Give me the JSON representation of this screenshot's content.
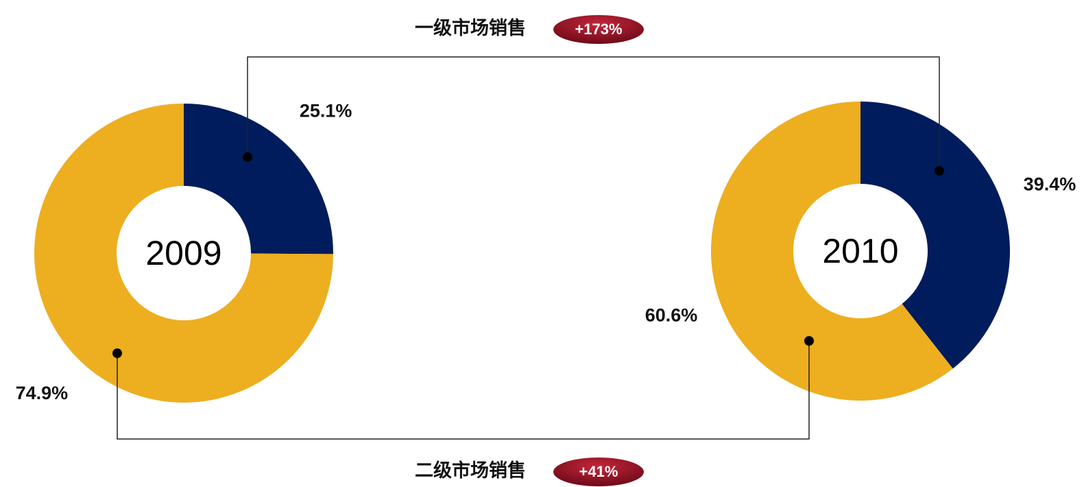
{
  "chart_data": [
    {
      "type": "donut",
      "title": "2009",
      "values": [
        25.1,
        74.9
      ],
      "value_labels": [
        "25.1%",
        "74.9%"
      ],
      "colors": [
        "#001c5c",
        "#edae20"
      ]
    },
    {
      "type": "donut",
      "title": "2010",
      "values": [
        39.4,
        60.6
      ],
      "value_labels": [
        "39.4%",
        "60.6%"
      ],
      "colors": [
        "#001c5c",
        "#edae20"
      ]
    }
  ],
  "links": [
    {
      "label": "一级市场销售",
      "change": "+173%"
    },
    {
      "label": "二级市场销售",
      "change": "+41%"
    }
  ]
}
